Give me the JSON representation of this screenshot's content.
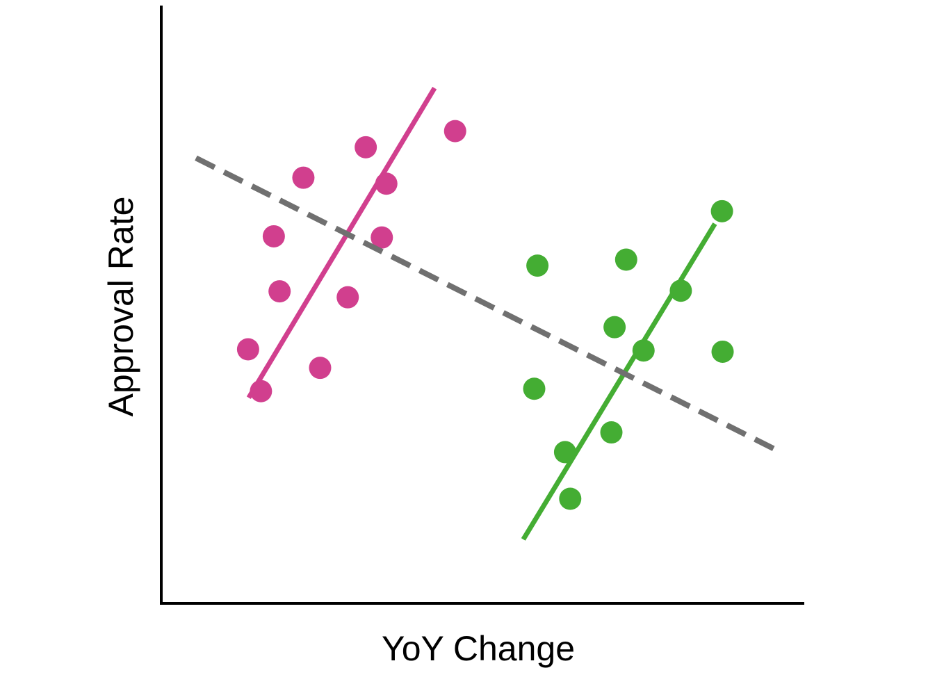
{
  "chart_data": {
    "type": "scatter",
    "title": "",
    "xlabel": "YoY Change",
    "ylabel": "Approval Rate",
    "xlim": [
      0,
      100
    ],
    "ylim": [
      0,
      100
    ],
    "grid": false,
    "legend": "none",
    "axis_color": "#000000",
    "series": [
      {
        "color": "#d13f8e",
        "points": [
          [
            13.5,
            42.5
          ],
          [
            17.5,
            61.4
          ],
          [
            22.1,
            71.2
          ],
          [
            31.8,
            76.3
          ],
          [
            18.4,
            52.2
          ],
          [
            29.0,
            51.2
          ],
          [
            15.5,
            35.5
          ],
          [
            24.7,
            39.4
          ],
          [
            35.0,
            70.2
          ],
          [
            34.3,
            61.2
          ],
          [
            45.7,
            79.0
          ]
        ],
        "fit_line": [
          [
            13.6,
            34.4
          ],
          [
            42.5,
            86.2
          ]
        ]
      },
      {
        "color": "#44ad33",
        "points": [
          [
            72.3,
            57.5
          ],
          [
            70.5,
            46.2
          ],
          [
            80.8,
            52.3
          ],
          [
            58.0,
            35.9
          ],
          [
            62.8,
            25.3
          ],
          [
            75.0,
            42.3
          ],
          [
            87.3,
            42.1
          ],
          [
            70.0,
            28.6
          ],
          [
            63.6,
            17.5
          ],
          [
            58.5,
            56.5
          ],
          [
            87.2,
            65.6
          ]
        ],
        "fit_line": [
          [
            56.3,
            10.7
          ],
          [
            86.1,
            63.5
          ]
        ]
      },
      {
        "color": "#707070",
        "line_style": "dashed",
        "fit_line": [
          [
            5.4,
            74.5
          ],
          [
            96.5,
            25.2
          ]
        ]
      }
    ]
  }
}
